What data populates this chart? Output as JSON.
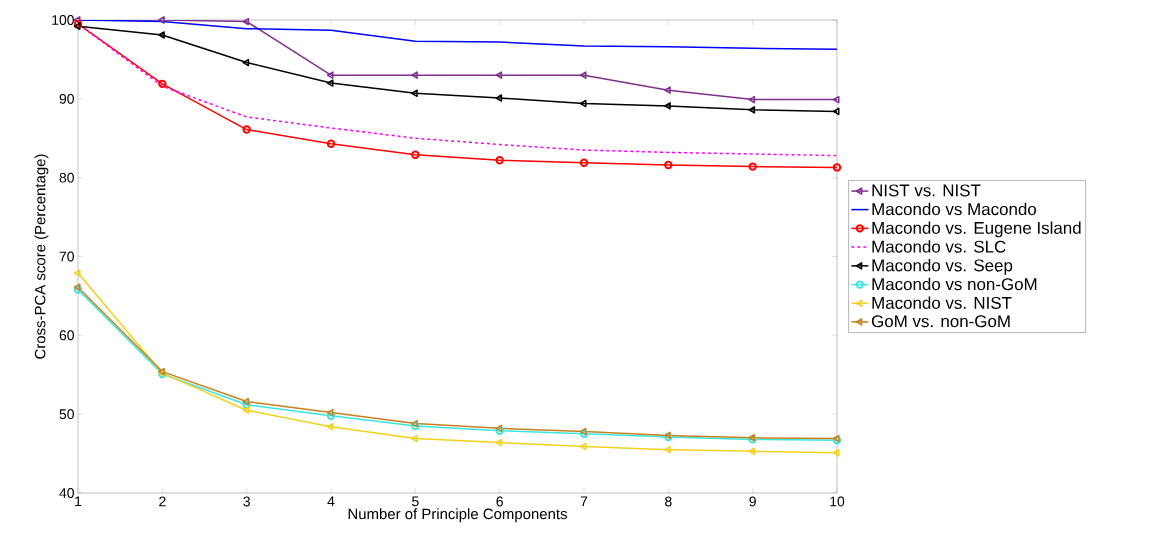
{
  "chart_data": {
    "type": "line",
    "xlabel": "Number of Principle Components",
    "ylabel": "Cross-PCA score (Percentage)",
    "x": [
      1,
      2,
      3,
      4,
      5,
      6,
      7,
      8,
      9,
      10
    ],
    "xlim": [
      1,
      10
    ],
    "xticks": [
      1,
      2,
      3,
      4,
      5,
      6,
      7,
      8,
      9,
      10
    ],
    "ylim": [
      40,
      100
    ],
    "yticks": [
      40,
      50,
      60,
      70,
      80,
      90,
      100
    ],
    "grid": false,
    "legend": "right",
    "series": [
      {
        "name": "NIST vs. NIST",
        "color": "#7e2f8e",
        "marker": "triangle",
        "values": [
          100,
          100,
          99.8,
          93.0,
          93.0,
          93.0,
          93.0,
          91.1,
          89.9,
          89.9
        ]
      },
      {
        "name": "Macondo vs Macondo",
        "color": "#0000ff",
        "marker": "none",
        "values": [
          100,
          99.8,
          98.9,
          98.7,
          97.3,
          97.2,
          96.7,
          96.6,
          96.4,
          96.3
        ]
      },
      {
        "name": "Macondo vs. Eugene Island",
        "color": "#ff0000",
        "marker": "circle",
        "values": [
          99.5,
          91.9,
          86.1,
          84.3,
          82.9,
          82.2,
          81.9,
          81.6,
          81.4,
          81.3
        ]
      },
      {
        "name": "Macondo vs. SLC",
        "color": "#ff00ff",
        "marker": "none",
        "line_style": "dashed",
        "values": [
          99.5,
          91.6,
          87.7,
          86.3,
          85.0,
          84.2,
          83.5,
          83.2,
          83.0,
          82.8
        ]
      },
      {
        "name": "Macondo vs. Seep",
        "color": "#000000",
        "marker": "triangle",
        "values": [
          99.2,
          98.1,
          94.6,
          92.0,
          90.7,
          90.1,
          89.4,
          89.1,
          88.6,
          88.4
        ]
      },
      {
        "name": "Macondo vs non-GoM",
        "color": "#3ce6e0",
        "marker": "circle",
        "values": [
          65.8,
          55.1,
          51.2,
          49.8,
          48.5,
          47.9,
          47.5,
          47.1,
          46.8,
          46.7
        ]
      },
      {
        "name": "Macondo vs. NIST",
        "color": "#f2d21c",
        "marker": "triangle",
        "values": [
          67.9,
          55.2,
          50.5,
          48.4,
          46.9,
          46.4,
          45.9,
          45.5,
          45.3,
          45.1
        ]
      },
      {
        "name": "GoM vs. non-GoM",
        "color": "#c8801e",
        "marker": "triangle",
        "values": [
          66.1,
          55.4,
          51.6,
          50.2,
          48.8,
          48.2,
          47.8,
          47.3,
          47.0,
          46.9
        ]
      }
    ]
  }
}
